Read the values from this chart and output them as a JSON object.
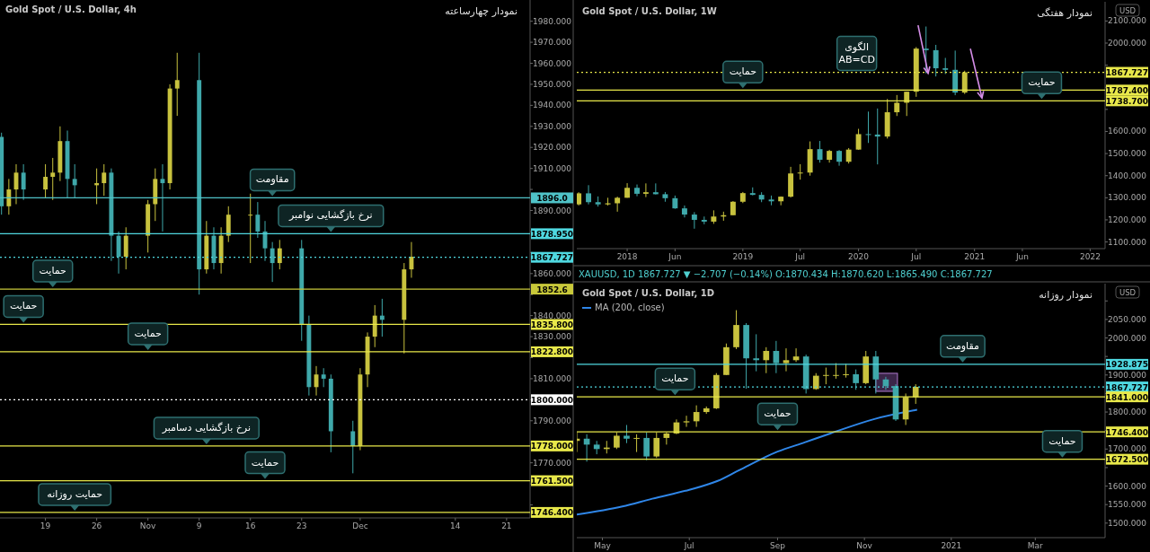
{
  "chart_data": [
    {
      "type": "candlestick",
      "title": "Gold Spot / U.S. Dollar, 4h",
      "subtitle": "نمودار چهارساعته",
      "xlim": [
        "2020-10-12T19:00",
        "2020-12-24T05:00"
      ],
      "ylim": [
        1743.8,
        1990.1
      ],
      "xticks": [
        {
          "value": "2020-10-19",
          "label": "19"
        },
        {
          "value": "2020-10-26",
          "label": "26"
        },
        {
          "value": "2020-11-02",
          "label": "Nov"
        },
        {
          "value": "2020-11-09",
          "label": "9"
        },
        {
          "value": "2020-11-16",
          "label": "16"
        },
        {
          "value": "2020-11-23",
          "label": "23"
        },
        {
          "value": "2020-12-01",
          "label": "Dec"
        },
        {
          "value": "2020-12-14",
          "label": "14"
        },
        {
          "value": "2020-12-21",
          "label": "21"
        }
      ],
      "yticks": [
        {
          "value": 1750,
          "label": null
        },
        {
          "value": 1760,
          "label": null
        },
        {
          "value": 1770,
          "label": "1770.000"
        },
        {
          "value": 1780,
          "label": null
        },
        {
          "value": 1790,
          "label": "1790.000"
        },
        {
          "value": 1800,
          "label": null
        },
        {
          "value": 1810,
          "label": "1810.000"
        },
        {
          "value": 1820,
          "label": null
        },
        {
          "value": 1830,
          "label": "1830.000"
        },
        {
          "value": 1840,
          "label": "1840.000"
        },
        {
          "value": 1850,
          "label": null
        },
        {
          "value": 1860,
          "label": "1860.000"
        },
        {
          "value": 1870,
          "label": null
        },
        {
          "value": 1880,
          "label": null
        },
        {
          "value": 1890,
          "label": "1890.000"
        },
        {
          "value": 1900,
          "label": null
        },
        {
          "value": 1910,
          "label": "1910.000"
        },
        {
          "value": 1920,
          "label": "1920.000"
        },
        {
          "value": 1930,
          "label": "1930.000"
        },
        {
          "value": 1940,
          "label": "1940.000"
        },
        {
          "value": 1950,
          "label": "1950.000"
        },
        {
          "value": 1960,
          "label": "1960.000"
        },
        {
          "value": 1970,
          "label": "1970.000"
        },
        {
          "value": 1980,
          "label": "1980.000"
        }
      ],
      "x": [
        "2020-10-13",
        "2020-10-14",
        "2020-10-15",
        "2020-10-16",
        "2020-10-19",
        "2020-10-20",
        "2020-10-21",
        "2020-10-22",
        "2020-10-23",
        "2020-10-26",
        "2020-10-27",
        "2020-10-28",
        "2020-10-29",
        "2020-10-30",
        "2020-11-02",
        "2020-11-03",
        "2020-11-04",
        "2020-11-05",
        "2020-11-06",
        "2020-11-09",
        "2020-11-10",
        "2020-11-11",
        "2020-11-12",
        "2020-11-13",
        "2020-11-16",
        "2020-11-17",
        "2020-11-18",
        "2020-11-19",
        "2020-11-20",
        "2020-11-23",
        "2020-11-24",
        "2020-11-25",
        "2020-11-26",
        "2020-11-27",
        "2020-11-30",
        "2020-12-01",
        "2020-12-02",
        "2020-12-03",
        "2020-12-04",
        "2020-12-07",
        "2020-12-08"
      ],
      "ohlc": [
        [
          1925,
          1927,
          1888,
          1892
        ],
        [
          1892,
          1905,
          1888,
          1900
        ],
        [
          1900,
          1912,
          1893,
          1908
        ],
        [
          1908,
          1912,
          1895,
          1900
        ],
        [
          1900,
          1912,
          1896,
          1906
        ],
        [
          1906,
          1915,
          1895,
          1908
        ],
        [
          1908,
          1930,
          1904,
          1923
        ],
        [
          1923,
          1928,
          1896,
          1905
        ],
        [
          1905,
          1912,
          1896,
          1902
        ],
        [
          1902,
          1910,
          1893,
          1903
        ],
        [
          1903,
          1912,
          1897,
          1908
        ],
        [
          1908,
          1910,
          1866,
          1878
        ],
        [
          1878,
          1880,
          1860,
          1868
        ],
        [
          1868,
          1882,
          1862,
          1878
        ],
        [
          1878,
          1895,
          1870,
          1893
        ],
        [
          1893,
          1910,
          1885,
          1905
        ],
        [
          1905,
          1912,
          1880,
          1903
        ],
        [
          1903,
          1950,
          1900,
          1948
        ],
        [
          1948,
          1965,
          1935,
          1952
        ],
        [
          1952,
          1965,
          1850,
          1862
        ],
        [
          1862,
          1885,
          1860,
          1878
        ],
        [
          1878,
          1882,
          1862,
          1865
        ],
        [
          1865,
          1882,
          1860,
          1878
        ],
        [
          1878,
          1892,
          1875,
          1888
        ],
        [
          1888,
          1898,
          1865,
          1888
        ],
        [
          1888,
          1894,
          1877,
          1880
        ],
        [
          1880,
          1885,
          1866,
          1872
        ],
        [
          1872,
          1875,
          1856,
          1865
        ],
        [
          1865,
          1876,
          1862,
          1872
        ],
        [
          1872,
          1876,
          1828,
          1836
        ],
        [
          1836,
          1840,
          1802,
          1806
        ],
        [
          1806,
          1816,
          1802,
          1812
        ],
        [
          1812,
          1815,
          1806,
          1810
        ],
        [
          1810,
          1812,
          1775,
          1785
        ],
        [
          1785,
          1790,
          1765,
          1778
        ],
        [
          1778,
          1815,
          1776,
          1812
        ],
        [
          1812,
          1832,
          1806,
          1830
        ],
        [
          1830,
          1845,
          1825,
          1840
        ],
        [
          1840,
          1848,
          1830,
          1838
        ],
        [
          1838,
          1865,
          1822,
          1862
        ],
        [
          1862,
          1875,
          1858,
          1868
        ]
      ],
      "ref_lines": [
        {
          "axis": "y",
          "value": 1896,
          "label": "1896.0",
          "color": "#4fc3c8"
        },
        {
          "axis": "y",
          "value": 1878.95,
          "label": "1878.950",
          "color": "#4fd8e0"
        },
        {
          "axis": "y",
          "value": 1867.727,
          "label": "1867.727",
          "color": "#4fd8e0",
          "line_style": "dotted"
        },
        {
          "axis": "y",
          "value": 1852.6,
          "label": "1852.6",
          "color": "#c8c83a"
        },
        {
          "axis": "y",
          "value": 1835.8,
          "label": "1835.800",
          "color": "#e8e84a"
        },
        {
          "axis": "y",
          "value": 1822.8,
          "label": "1822.800",
          "color": "#e8e84a"
        },
        {
          "axis": "y",
          "value": 1800,
          "label": "1800.000",
          "color": "#ffffff",
          "line_style": "dotted"
        },
        {
          "axis": "y",
          "value": 1778,
          "label": "1778.000",
          "color": "#e8e84a"
        },
        {
          "axis": "y",
          "value": 1761.5,
          "label": "1761.500",
          "color": "#e8e84a"
        },
        {
          "axis": "y",
          "value": 1746.4,
          "label": "1746.400",
          "color": "#e8e84a"
        }
      ],
      "annotations": [
        {
          "text": "مقاومت",
          "x": "2020-11-19",
          "y": 1896
        },
        {
          "text": "نرخ بازگشایی نوامبر",
          "x": "2020-11-27",
          "y": 1878.95
        },
        {
          "text": "حمایت",
          "x": "2020-10-20",
          "y": 1852.6
        },
        {
          "text": "حمایت",
          "x": "2020-10-16",
          "y": 1835.8
        },
        {
          "text": "حمایت",
          "x": "2020-11-02",
          "y": 1822.8
        },
        {
          "text": "نرخ بازگشایی دسامبر",
          "x": "2020-11-10",
          "y": 1778
        },
        {
          "text": "حمایت",
          "x": "2020-11-18",
          "y": 1761.5
        },
        {
          "text": "حمایت روزانه",
          "x": "2020-10-23",
          "y": 1746.4
        }
      ]
    },
    {
      "type": "candlestick",
      "title": "Gold Spot / U.S. Dollar, 1W",
      "subtitle": "نمودار هفتگی",
      "ylabel": "USD",
      "xlim": [
        "2017-07-26",
        "2022-02-17"
      ],
      "ylim": [
        1069.8,
        2186.9
      ],
      "xticks": [
        {
          "value": "2018-01-01",
          "label": "2018"
        },
        {
          "value": "2018-06-01",
          "label": "Jun"
        },
        {
          "value": "2019-01-01",
          "label": "2019"
        },
        {
          "value": "2019-07-01",
          "label": "Jul"
        },
        {
          "value": "2020-01-01",
          "label": "2020"
        },
        {
          "value": "2020-07-01",
          "label": "Jul"
        },
        {
          "value": "2021-01-01",
          "label": "2021"
        },
        {
          "value": "2021-06-01",
          "label": "Jun"
        },
        {
          "value": "2022-01-01",
          "label": "2022"
        }
      ],
      "yticks": [
        {
          "value": 1100,
          "label": "1100.000"
        },
        {
          "value": 1200,
          "label": "1200.000"
        },
        {
          "value": 1300,
          "label": "1300.000"
        },
        {
          "value": 1400,
          "label": "1400.000"
        },
        {
          "value": 1500,
          "label": "1500.000"
        },
        {
          "value": 1600,
          "label": "1600.000"
        },
        {
          "value": 1700,
          "label": null
        },
        {
          "value": 1800,
          "label": null
        },
        {
          "value": 1900,
          "label": null
        },
        {
          "value": 2000,
          "label": "2000.000"
        },
        {
          "value": 2100,
          "label": "2100.000"
        }
      ],
      "x": [
        "2017-08",
        "2017-09",
        "2017-10",
        "2017-11",
        "2017-12",
        "2018-01",
        "2018-02",
        "2018-03",
        "2018-04",
        "2018-05",
        "2018-06",
        "2018-07",
        "2018-08",
        "2018-09",
        "2018-10",
        "2018-11",
        "2018-12",
        "2019-01",
        "2019-02",
        "2019-03",
        "2019-04",
        "2019-05",
        "2019-06",
        "2019-07",
        "2019-08",
        "2019-09",
        "2019-10",
        "2019-11",
        "2019-12",
        "2020-01",
        "2020-02",
        "2020-03",
        "2020-04",
        "2020-05",
        "2020-06",
        "2020-07",
        "2020-08",
        "2020-09",
        "2020-10",
        "2020-11",
        "2020-12"
      ],
      "ohlc": [
        [
          1270,
          1325,
          1265,
          1320
        ],
        [
          1320,
          1357,
          1270,
          1280
        ],
        [
          1280,
          1306,
          1260,
          1270
        ],
        [
          1270,
          1300,
          1265,
          1275
        ],
        [
          1275,
          1305,
          1237,
          1300
        ],
        [
          1300,
          1366,
          1300,
          1345
        ],
        [
          1345,
          1360,
          1307,
          1318
        ],
        [
          1318,
          1365,
          1303,
          1325
        ],
        [
          1325,
          1365,
          1315,
          1316
        ],
        [
          1316,
          1326,
          1282,
          1298
        ],
        [
          1298,
          1310,
          1250,
          1252
        ],
        [
          1252,
          1265,
          1211,
          1224
        ],
        [
          1224,
          1235,
          1160,
          1200
        ],
        [
          1200,
          1215,
          1180,
          1192
        ],
        [
          1192,
          1243,
          1182,
          1215
        ],
        [
          1215,
          1237,
          1196,
          1221
        ],
        [
          1221,
          1285,
          1221,
          1282
        ],
        [
          1282,
          1326,
          1276,
          1321
        ],
        [
          1321,
          1347,
          1311,
          1313
        ],
        [
          1313,
          1325,
          1280,
          1292
        ],
        [
          1292,
          1310,
          1266,
          1284
        ],
        [
          1284,
          1306,
          1266,
          1305
        ],
        [
          1305,
          1440,
          1301,
          1410
        ],
        [
          1410,
          1452,
          1382,
          1414
        ],
        [
          1414,
          1555,
          1400,
          1520
        ],
        [
          1520,
          1557,
          1459,
          1472
        ],
        [
          1472,
          1517,
          1459,
          1512
        ],
        [
          1512,
          1516,
          1445,
          1463
        ],
        [
          1463,
          1525,
          1455,
          1518
        ],
        [
          1518,
          1612,
          1517,
          1588
        ],
        [
          1588,
          1690,
          1548,
          1586
        ],
        [
          1586,
          1704,
          1451,
          1577
        ],
        [
          1577,
          1747,
          1568,
          1687
        ],
        [
          1687,
          1765,
          1670,
          1730
        ],
        [
          1730,
          1780,
          1670,
          1780
        ],
        [
          1780,
          1982,
          1757,
          1975
        ],
        [
          1975,
          2075,
          1863,
          1968
        ],
        [
          1968,
          1992,
          1849,
          1886
        ],
        [
          1886,
          1933,
          1860,
          1879
        ],
        [
          1879,
          1966,
          1764,
          1776
        ],
        [
          1776,
          1875,
          1770,
          1868
        ]
      ],
      "ref_lines": [
        {
          "axis": "y",
          "value": 1867.727,
          "label": "1867.727",
          "color": "#e8e84a",
          "line_style": "dotted"
        },
        {
          "axis": "y",
          "value": 1787.4,
          "label": "1787.400",
          "color": "#e8e84a"
        },
        {
          "axis": "y",
          "value": 1738.7,
          "label": "1738.700",
          "color": "#e8e84a"
        }
      ],
      "annotations": [
        "الگوی\nAB=CD",
        {
          "text": "حمایت",
          "x": "2019-01-01",
          "y": 1787.4
        },
        {
          "text": "حمایت",
          "x": "2021-08-01",
          "y": 1738.7
        }
      ]
    },
    {
      "type": "candlestick",
      "title": "Gold Spot / U.S. Dollar, 1D",
      "subtitle": "نمودار روزانه",
      "ylabel": "USD",
      "legend": "top left",
      "xlim": [
        "2020-04-13",
        "2021-04-19"
      ],
      "ylim": [
        1460.8,
        2146.7
      ],
      "xticks": [
        {
          "value": "2020-05-01",
          "label": "May"
        },
        {
          "value": "2020-07-01",
          "label": "Jul"
        },
        {
          "value": "2020-09-01",
          "label": "Sep"
        },
        {
          "value": "2020-11-01",
          "label": "Nov"
        },
        {
          "value": "2021-01-01",
          "label": "2021"
        },
        {
          "value": "2021-03-01",
          "label": "Mar"
        }
      ],
      "yticks": [
        {
          "value": 1500,
          "label": "1500.000"
        },
        {
          "value": 1550,
          "label": "1550.000"
        },
        {
          "value": 1600,
          "label": "1600.000"
        },
        {
          "value": 1650,
          "label": null
        },
        {
          "value": 1700,
          "label": "1700.000"
        },
        {
          "value": 1750,
          "label": null
        },
        {
          "value": 1800,
          "label": "1800.000"
        },
        {
          "value": 1850,
          "label": null
        },
        {
          "value": 1900,
          "label": "1900.000"
        },
        {
          "value": 1950,
          "label": null
        },
        {
          "value": 2000,
          "label": "2000.000"
        },
        {
          "value": 2050,
          "label": "2050.000"
        },
        {
          "value": 2100,
          "label": null
        }
      ],
      "x": [
        "2020-04-13",
        "2020-04-20",
        "2020-04-27",
        "2020-05-04",
        "2020-05-11",
        "2020-05-18",
        "2020-05-25",
        "2020-06-01",
        "2020-06-08",
        "2020-06-15",
        "2020-06-22",
        "2020-06-29",
        "2020-07-06",
        "2020-07-13",
        "2020-07-20",
        "2020-07-27",
        "2020-08-03",
        "2020-08-10",
        "2020-08-17",
        "2020-08-24",
        "2020-08-31",
        "2020-09-07",
        "2020-09-14",
        "2020-09-21",
        "2020-09-28",
        "2020-10-05",
        "2020-10-12",
        "2020-10-19",
        "2020-10-26",
        "2020-11-02",
        "2020-11-09",
        "2020-11-16",
        "2020-11-23",
        "2020-11-30",
        "2020-12-07"
      ],
      "ohlc": [
        [
          1722,
          1745,
          1692,
          1728
        ],
        [
          1728,
          1740,
          1666,
          1712
        ],
        [
          1712,
          1722,
          1686,
          1700
        ],
        [
          1700,
          1722,
          1688,
          1704
        ],
        [
          1704,
          1745,
          1700,
          1736
        ],
        [
          1736,
          1765,
          1716,
          1728
        ],
        [
          1728,
          1740,
          1692,
          1730
        ],
        [
          1730,
          1745,
          1670,
          1680
        ],
        [
          1680,
          1745,
          1676,
          1730
        ],
        [
          1730,
          1745,
          1712,
          1742
        ],
        [
          1742,
          1780,
          1740,
          1772
        ],
        [
          1772,
          1790,
          1760,
          1775
        ],
        [
          1775,
          1818,
          1760,
          1800
        ],
        [
          1800,
          1815,
          1795,
          1810
        ],
        [
          1810,
          1905,
          1808,
          1900
        ],
        [
          1900,
          1985,
          1900,
          1975
        ],
        [
          1975,
          2075,
          1970,
          2035
        ],
        [
          2035,
          2040,
          1863,
          1945
        ],
        [
          1945,
          2010,
          1910,
          1940
        ],
        [
          1940,
          1975,
          1905,
          1965
        ],
        [
          1965,
          1992,
          1905,
          1932
        ],
        [
          1932,
          1972,
          1910,
          1940
        ],
        [
          1940,
          1972,
          1935,
          1950
        ],
        [
          1950,
          1955,
          1850,
          1862
        ],
        [
          1862,
          1905,
          1860,
          1898
        ],
        [
          1898,
          1920,
          1875,
          1900
        ],
        [
          1900,
          1932,
          1890,
          1900
        ],
        [
          1900,
          1930,
          1893,
          1902
        ],
        [
          1902,
          1915,
          1860,
          1878
        ],
        [
          1878,
          1965,
          1875,
          1950
        ],
        [
          1950,
          1965,
          1850,
          1888
        ],
        [
          1888,
          1895,
          1860,
          1870
        ],
        [
          1870,
          1875,
          1776,
          1780
        ],
        [
          1780,
          1850,
          1765,
          1840
        ],
        [
          1840,
          1875,
          1822,
          1868
        ]
      ],
      "series": [
        {
          "type": "line",
          "name": "MA (200, close)",
          "color": "#2f86e8",
          "x": [
            "2020-04-13",
            "2020-05-15",
            "2020-06-05",
            "2020-07-01",
            "2020-07-21",
            "2020-08-05",
            "2020-09-01",
            "2020-09-20",
            "2020-10-08",
            "2020-11-08",
            "2020-12-08"
          ],
          "values": [
            1523,
            1545,
            1566,
            1590,
            1614,
            1643,
            1693,
            1718,
            1742,
            1781,
            1806
          ]
        }
      ],
      "ref_lines": [
        {
          "axis": "y",
          "value": 1928.875,
          "label": "1928.875",
          "color": "#4fd8e0"
        },
        {
          "axis": "y",
          "value": 1867.727,
          "label": "1867.727",
          "color": "#4fd8e0",
          "line_style": "dotted"
        },
        {
          "axis": "y",
          "value": 1841,
          "label": "1841.000",
          "color": "#e8e84a"
        },
        {
          "axis": "y",
          "value": 1746.4,
          "label": "1746.400",
          "color": "#e8e84a"
        },
        {
          "axis": "y",
          "value": 1672.5,
          "label": "1672.500",
          "color": "#e8e84a"
        }
      ],
      "annotations": [
        "XAUUSD, 1D  1867.727 ▼ −2.707 (−0.14%)  O:1870.434  H:1870.620  L:1865.490  C:1867.727",
        {
          "text": "مقاومت",
          "x": "2021-01-09",
          "y": 1928.875
        },
        {
          "text": "حمایت",
          "x": "2020-06-21",
          "y": 1841
        },
        {
          "text": "حمایت",
          "x": "2020-09-01",
          "y": 1746.4
        },
        {
          "text": "حمایت",
          "x": "2021-03-20",
          "y": 1672.5
        }
      ]
    }
  ]
}
